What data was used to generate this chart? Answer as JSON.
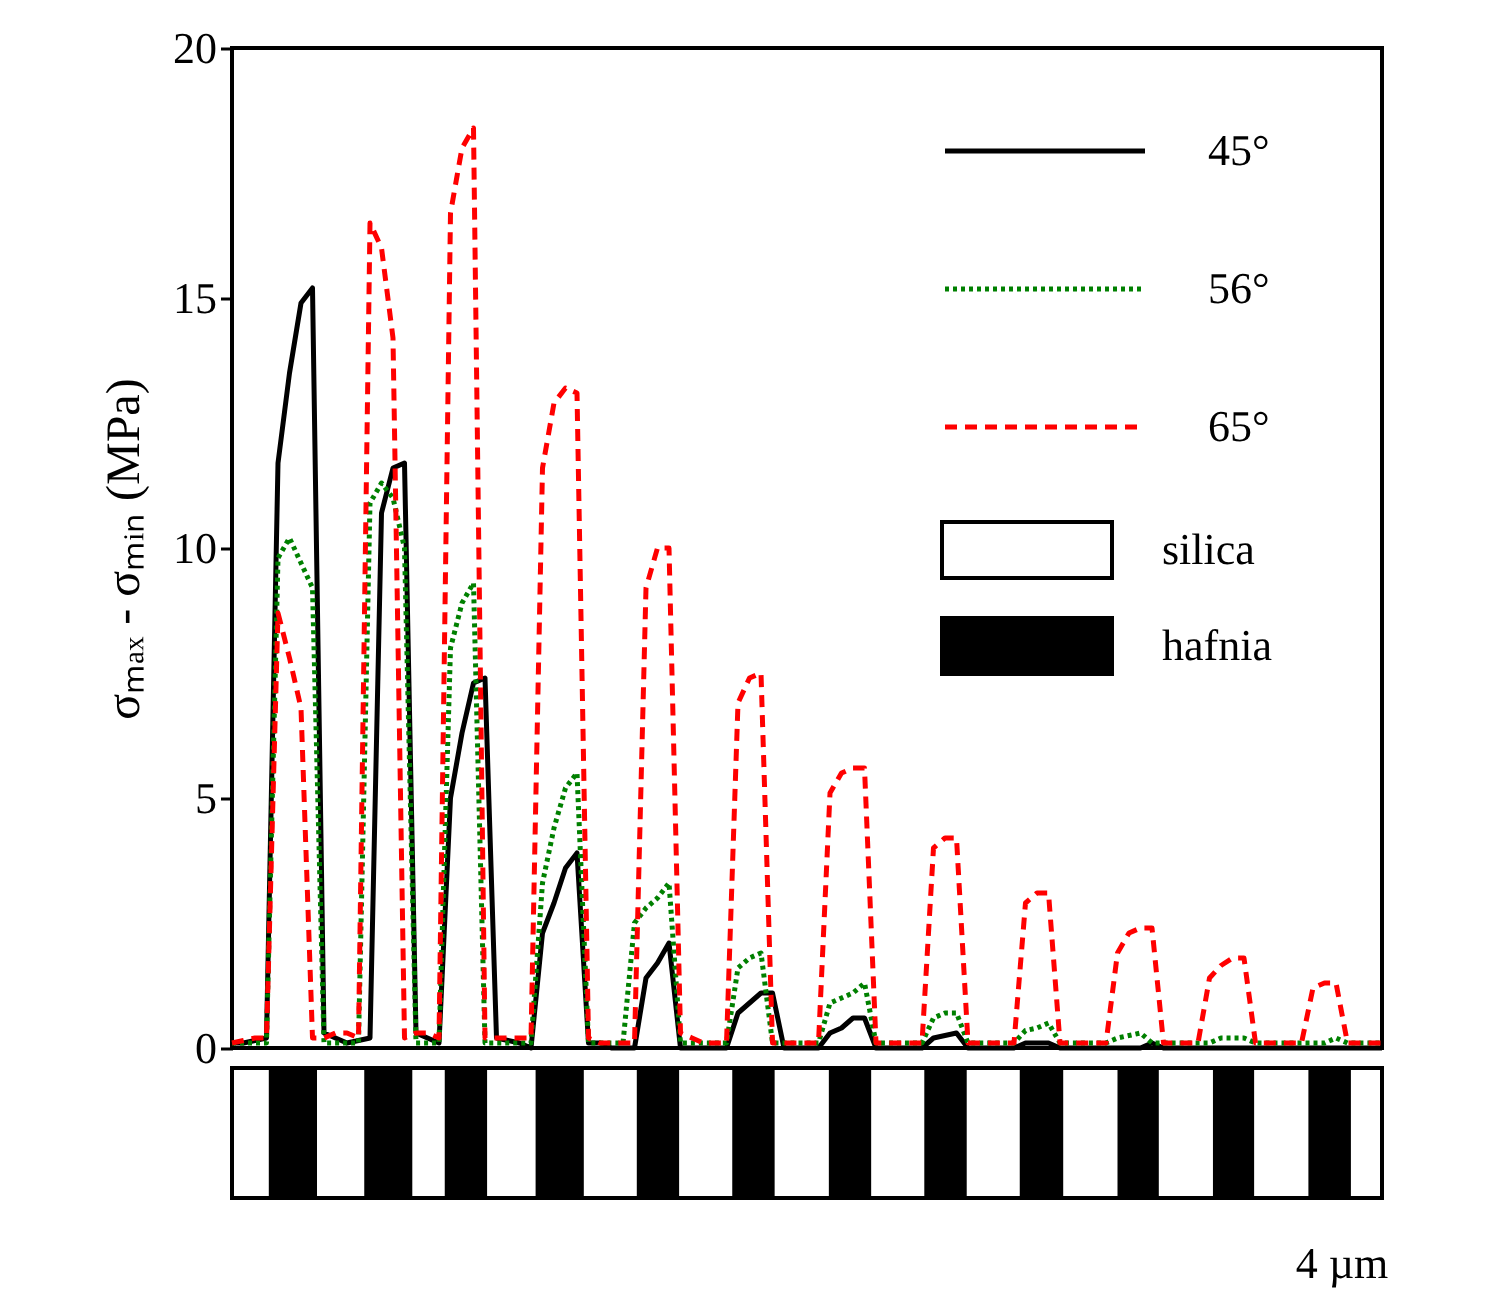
{
  "chart_data": {
    "type": "line",
    "ylabel": "σₘₐₓ - σₘᵢₙ (MPa)",
    "ylim": [
      0,
      20
    ],
    "yticks": [
      0,
      5,
      10,
      15,
      20
    ],
    "grid": false,
    "legend": "top right",
    "annotations": [
      "silica",
      "hafnia",
      "4 µm"
    ],
    "categories": [
      null,
      null,
      null,
      null,
      null,
      null,
      null,
      null,
      null,
      null,
      null,
      null,
      null,
      null,
      null,
      null,
      null,
      null,
      null,
      null,
      null,
      null,
      null,
      null,
      null,
      null,
      null,
      null,
      null,
      null,
      null,
      null,
      null,
      null,
      null,
      null,
      null,
      null,
      null,
      null,
      null,
      null,
      null,
      null,
      null,
      null,
      null,
      null,
      null,
      null,
      null,
      null,
      null,
      null,
      null,
      null,
      null,
      null,
      null,
      null,
      null,
      null,
      null,
      null,
      null,
      null,
      null,
      null,
      null,
      null,
      null,
      null,
      null,
      null,
      null,
      null,
      null,
      null,
      null,
      null,
      null,
      null,
      null,
      null,
      null,
      null,
      null,
      null,
      null,
      null,
      null,
      null,
      null,
      null,
      null,
      null,
      null,
      null,
      null,
      null,
      null
    ],
    "series": [
      {
        "name": "45°",
        "color": "#000000",
        "line_style": "solid",
        "values": [
          0.1,
          0.1,
          0.15,
          0.2,
          11.7,
          13.5,
          14.9,
          15.2,
          0.3,
          0.2,
          0.1,
          0.15,
          0.2,
          10.7,
          11.6,
          11.7,
          0.3,
          0.2,
          0.1,
          5.0,
          6.3,
          7.3,
          7.4,
          0.2,
          0.15,
          0.1,
          0,
          2.3,
          2.9,
          3.6,
          3.9,
          0.1,
          0.1,
          0,
          0,
          0,
          1.4,
          1.7,
          2.1,
          0,
          0,
          0,
          0,
          0,
          0.7,
          0.9,
          1.1,
          1.1,
          0,
          0,
          0,
          0,
          0.3,
          0.4,
          0.6,
          0.6,
          0,
          0,
          0,
          0,
          0,
          0.2,
          0.25,
          0.3,
          0,
          0,
          0,
          0,
          0,
          0.1,
          0.1,
          0.1,
          0,
          0,
          0,
          0,
          0,
          0,
          0,
          0,
          0.1,
          0,
          0,
          0,
          0,
          0,
          0,
          0,
          0,
          0,
          0,
          0,
          0,
          0,
          0,
          0,
          0,
          0,
          0,
          0,
          0
        ]
      },
      {
        "name": "56°",
        "color": "#008000",
        "line_style": "dotted",
        "values": [
          0.1,
          0.1,
          0.1,
          0.1,
          9.8,
          10.2,
          9.7,
          9.2,
          0.1,
          0.1,
          0.1,
          0.1,
          10.9,
          11.3,
          11.0,
          10.0,
          0.1,
          0.1,
          0.1,
          8.0,
          8.9,
          9.3,
          0.1,
          0.1,
          0.1,
          0.1,
          0.1,
          3.3,
          4.4,
          5.2,
          5.5,
          0.1,
          0.1,
          0.1,
          0.1,
          2.5,
          2.8,
          3.0,
          3.3,
          0.1,
          0.1,
          0.1,
          0.1,
          0.1,
          1.6,
          1.8,
          1.9,
          0.1,
          0.1,
          0.1,
          0.1,
          0.1,
          0.9,
          1.0,
          1.1,
          1.3,
          0.1,
          0.1,
          0.1,
          0.1,
          0.1,
          0.6,
          0.7,
          0.7,
          0.1,
          0.1,
          0.1,
          0.1,
          0.1,
          0.35,
          0.4,
          0.5,
          0.1,
          0.1,
          0.1,
          0.1,
          0.1,
          0.2,
          0.25,
          0.3,
          0.1,
          0.1,
          0.1,
          0.1,
          0.1,
          0.1,
          0.2,
          0.2,
          0.2,
          0.1,
          0.1,
          0.1,
          0.1,
          0.1,
          0.1,
          0.1,
          0.2,
          0.1,
          0.1,
          0.1,
          0.1
        ]
      },
      {
        "name": "65°",
        "color": "#ff0000",
        "line_style": "dashed",
        "values": [
          0.1,
          0.15,
          0.2,
          0.2,
          8.7,
          7.8,
          6.8,
          0.2,
          0.2,
          0.3,
          0.3,
          0.2,
          16.5,
          16.0,
          14.2,
          0.2,
          0.3,
          0.3,
          0.2,
          16.7,
          18.0,
          18.4,
          0.2,
          0.2,
          0.2,
          0.2,
          0.2,
          11.6,
          12.9,
          13.2,
          13.1,
          0.2,
          0.1,
          0.1,
          0.1,
          0.1,
          9.2,
          10.0,
          10.0,
          0.3,
          0.2,
          0.1,
          0.1,
          0.1,
          6.9,
          7.4,
          7.5,
          0.1,
          0.1,
          0.1,
          0.1,
          0.1,
          5.1,
          5.5,
          5.6,
          5.6,
          0.1,
          0.1,
          0.1,
          0.1,
          0.1,
          4.0,
          4.2,
          4.2,
          0.1,
          0.1,
          0.1,
          0.1,
          0.1,
          2.9,
          3.1,
          3.1,
          0.1,
          0.1,
          0.1,
          0.1,
          0.1,
          1.9,
          2.3,
          2.4,
          2.4,
          0.1,
          0.1,
          0.1,
          0.1,
          1.4,
          1.65,
          1.8,
          1.8,
          0.1,
          0.1,
          0.1,
          0.1,
          0.1,
          1.2,
          1.3,
          1.3,
          0.1,
          0.1,
          0.1,
          0.1
        ]
      }
    ]
  }
}
